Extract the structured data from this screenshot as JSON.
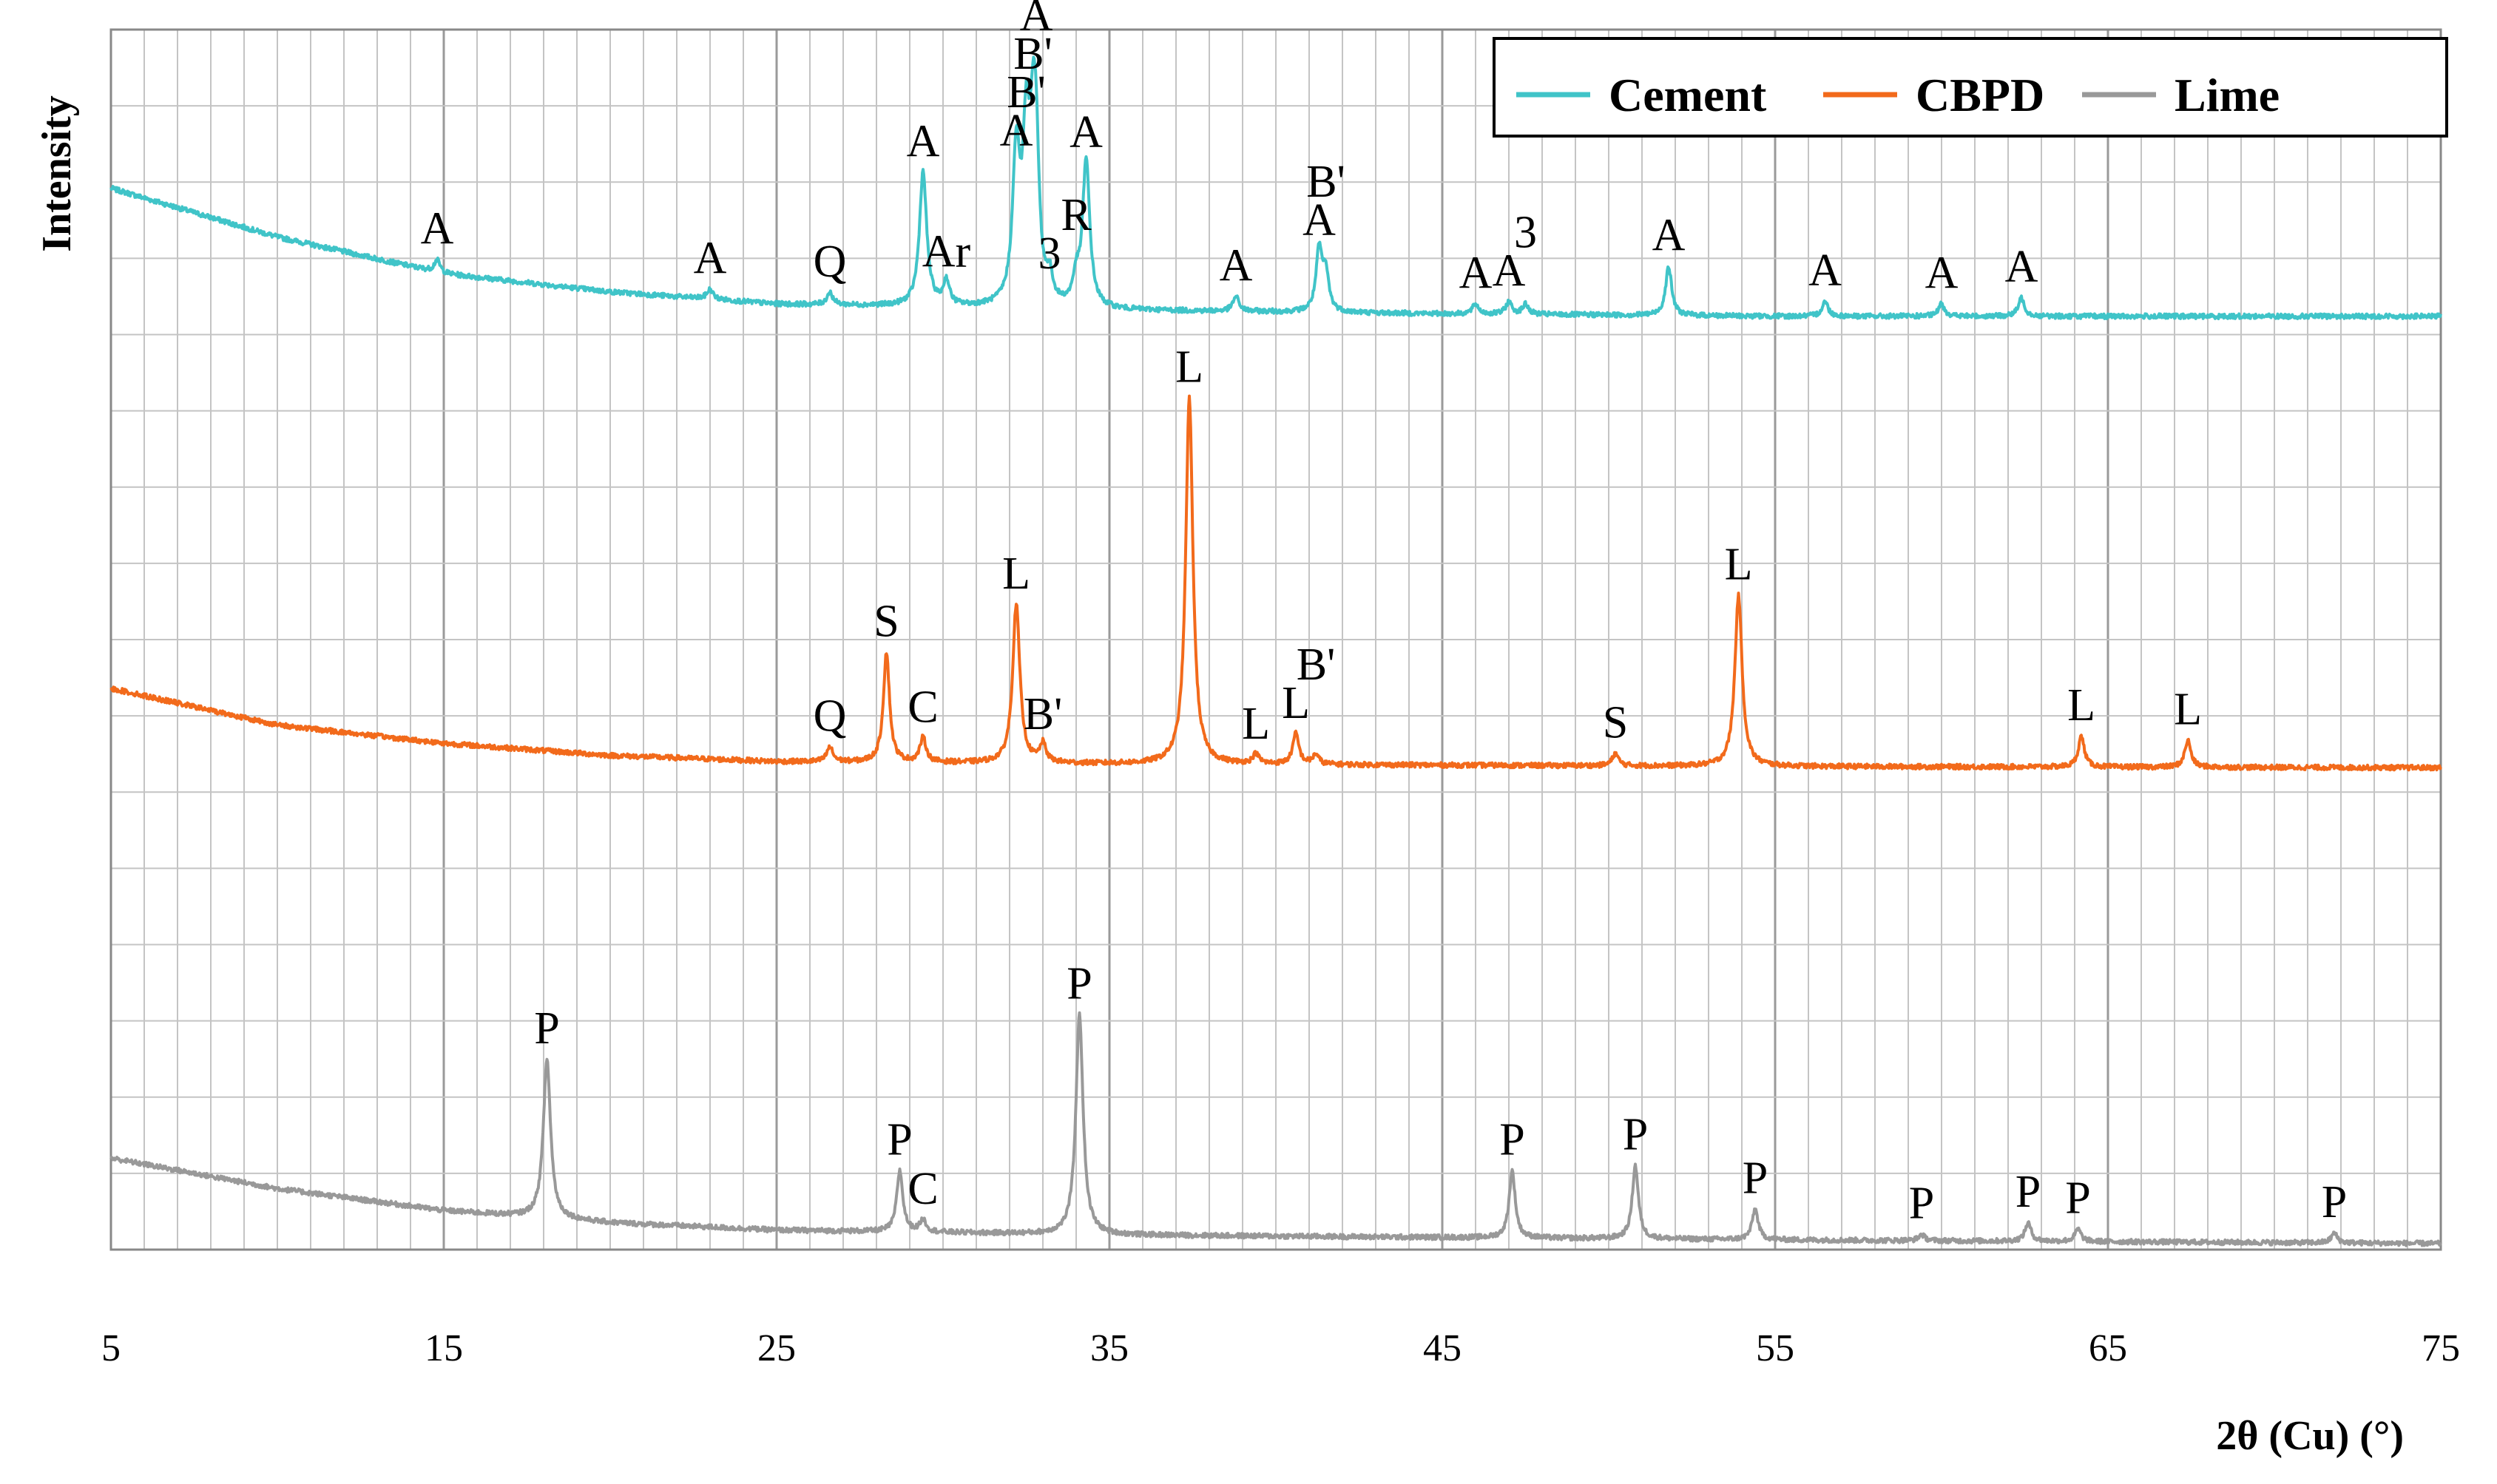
{
  "chart_data": {
    "type": "line",
    "title": "",
    "xlabel": "2θ (Cu) (°)",
    "ylabel": "Intensity",
    "xlim": [
      5,
      75
    ],
    "xticks": [
      "5",
      "15",
      "25",
      "35",
      "45",
      "55",
      "65",
      "75"
    ],
    "grid": true,
    "legend_position": "top-right",
    "series": [
      {
        "name": "Cement",
        "color": "#40C4C8",
        "baseline_points": [
          [
            5,
            0.87
          ],
          [
            10,
            0.83
          ],
          [
            15,
            0.8
          ],
          [
            20,
            0.785
          ],
          [
            25,
            0.775
          ],
          [
            35,
            0.77
          ],
          [
            45,
            0.767
          ],
          [
            55,
            0.765
          ],
          [
            75,
            0.765
          ]
        ],
        "peaks": [
          {
            "x": 14.8,
            "h": 0.01,
            "label": "A"
          },
          {
            "x": 23.0,
            "h": 0.008,
            "label": "A"
          },
          {
            "x": 26.6,
            "h": 0.01,
            "label": "Q"
          },
          {
            "x": 29.4,
            "h": 0.11,
            "label": "A"
          },
          {
            "x": 30.1,
            "h": 0.02,
            "label": "Ar"
          },
          {
            "x": 32.2,
            "h": 0.12,
            "label": "A"
          },
          {
            "x": 32.5,
            "h": 0.13,
            "label": "B'"
          },
          {
            "x": 32.7,
            "h": 0.1,
            "label": "B'"
          },
          {
            "x": 32.8,
            "h": 0.1,
            "label": "A"
          },
          {
            "x": 33.2,
            "h": 0.02,
            "label": "3"
          },
          {
            "x": 34.0,
            "h": 0.02,
            "label": "R"
          },
          {
            "x": 34.3,
            "h": 0.12,
            "label": "A"
          },
          {
            "x": 38.8,
            "h": 0.012,
            "label": "A"
          },
          {
            "x": 41.3,
            "h": 0.05,
            "label": "A"
          },
          {
            "x": 41.5,
            "h": 0.03,
            "label": "B'"
          },
          {
            "x": 46.0,
            "h": 0.008,
            "label": "A"
          },
          {
            "x": 47.0,
            "h": 0.01,
            "label": "A"
          },
          {
            "x": 47.5,
            "h": 0.008,
            "label": "3"
          },
          {
            "x": 51.8,
            "h": 0.04,
            "label": "A"
          },
          {
            "x": 56.5,
            "h": 0.012,
            "label": "A"
          },
          {
            "x": 60.0,
            "h": 0.01,
            "label": "A"
          },
          {
            "x": 62.4,
            "h": 0.015,
            "label": "A"
          }
        ]
      },
      {
        "name": "CBPD",
        "color": "#F26A1B",
        "baseline_points": [
          [
            5,
            0.46
          ],
          [
            10,
            0.43
          ],
          [
            15,
            0.415
          ],
          [
            20,
            0.405
          ],
          [
            25,
            0.4
          ],
          [
            35,
            0.398
          ],
          [
            45,
            0.397
          ],
          [
            55,
            0.396
          ],
          [
            75,
            0.395
          ]
        ],
        "peaks": [
          {
            "x": 26.6,
            "h": 0.012,
            "label": "Q"
          },
          {
            "x": 28.3,
            "h": 0.09,
            "label": "S"
          },
          {
            "x": 29.4,
            "h": 0.02,
            "label": "C"
          },
          {
            "x": 32.2,
            "h": 0.13,
            "label": "L"
          },
          {
            "x": 33.0,
            "h": 0.015,
            "label": "B'"
          },
          {
            "x": 37.4,
            "h": 0.3,
            "label": "L"
          },
          {
            "x": 39.4,
            "h": 0.008,
            "label": "L"
          },
          {
            "x": 40.6,
            "h": 0.025,
            "label": "L"
          },
          {
            "x": 41.2,
            "h": 0.008,
            "label": "B'"
          },
          {
            "x": 50.2,
            "h": 0.01,
            "label": "S"
          },
          {
            "x": 53.9,
            "h": 0.14,
            "label": "L"
          },
          {
            "x": 64.2,
            "h": 0.025,
            "label": "L"
          },
          {
            "x": 67.4,
            "h": 0.022,
            "label": "L"
          }
        ]
      },
      {
        "name": "Lime",
        "color": "#999999",
        "baseline_points": [
          [
            5,
            0.075
          ],
          [
            10,
            0.05
          ],
          [
            15,
            0.032
          ],
          [
            20,
            0.022
          ],
          [
            25,
            0.016
          ],
          [
            35,
            0.012
          ],
          [
            45,
            0.01
          ],
          [
            55,
            0.008
          ],
          [
            75,
            0.005
          ]
        ],
        "peaks": [
          {
            "x": 18.1,
            "h": 0.13,
            "label": "P"
          },
          {
            "x": 28.7,
            "h": 0.05,
            "label": "P"
          },
          {
            "x": 29.4,
            "h": 0.01,
            "label": "C"
          },
          {
            "x": 34.1,
            "h": 0.18,
            "label": "P"
          },
          {
            "x": 47.1,
            "h": 0.055,
            "label": "P"
          },
          {
            "x": 50.8,
            "h": 0.06,
            "label": "P"
          },
          {
            "x": 54.4,
            "h": 0.025,
            "label": "P"
          },
          {
            "x": 59.4,
            "h": 0.005,
            "label": "P"
          },
          {
            "x": 62.6,
            "h": 0.015,
            "label": "P"
          },
          {
            "x": 64.1,
            "h": 0.01,
            "label": "P"
          },
          {
            "x": 71.8,
            "h": 0.008,
            "label": "P"
          }
        ]
      }
    ]
  }
}
